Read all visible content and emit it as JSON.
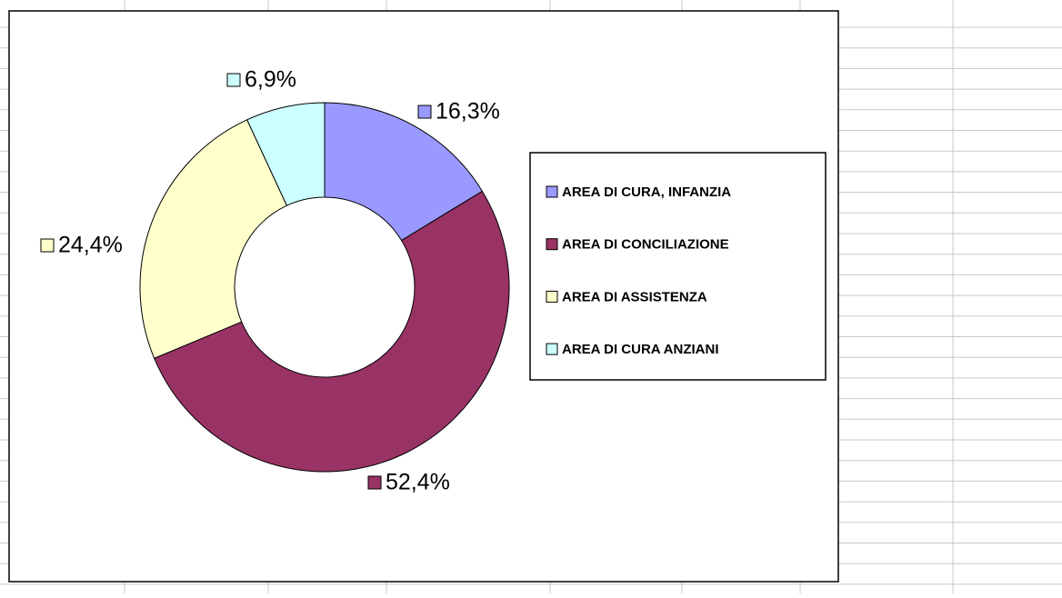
{
  "chart_data": {
    "type": "donut",
    "categories": [
      "AREA DI CURA, INFANZIA",
      "AREA DI CONCILIAZIONE",
      "AREA DI ASSISTENZA",
      "AREA DI CURA ANZIANI"
    ],
    "values": [
      16.3,
      52.4,
      24.4,
      6.9
    ],
    "value_labels": [
      "16,3%",
      "52,4%",
      "24,4%",
      "6,9%"
    ],
    "colors": [
      "#9999ff",
      "#993366",
      "#ffffcc",
      "#ccffff"
    ],
    "legend": "right"
  }
}
